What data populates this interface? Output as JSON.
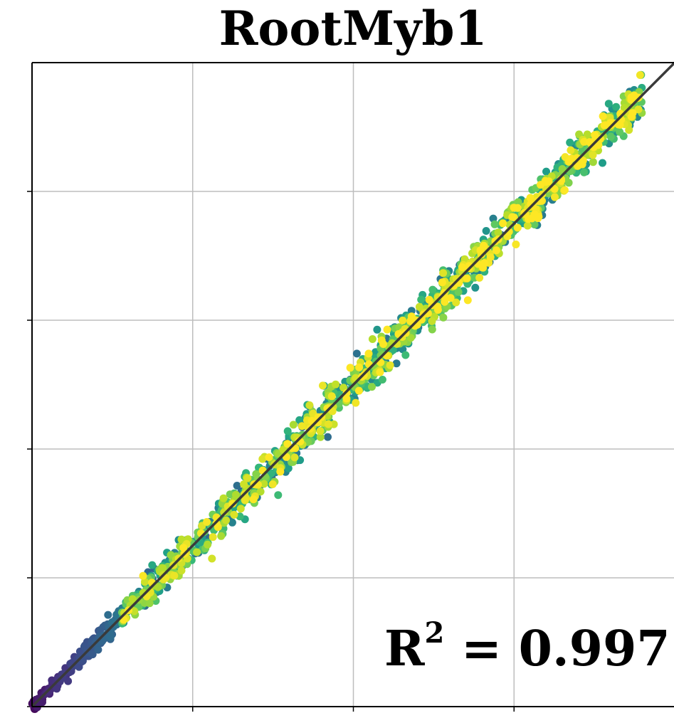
{
  "chart_data": {
    "type": "scatter",
    "title": "RootMyb1",
    "xlabel": "",
    "ylabel": "",
    "xlim": [
      0,
      1
    ],
    "ylim": [
      0,
      1
    ],
    "x_ticks": [
      0,
      0.25,
      0.5,
      0.75
    ],
    "y_ticks": [
      0,
      0.2,
      0.4,
      0.6,
      0.8
    ],
    "tick_labels_shown": false,
    "grid": true,
    "colormap": "viridis",
    "reference_line": {
      "from": [
        0,
        0
      ],
      "to": [
        1,
        1
      ],
      "color": "#3a3a3a"
    },
    "annotation": {
      "label": "R",
      "superscript": "2",
      "text": " = 0.997",
      "r_squared": 0.997
    },
    "series": [
      {
        "points_description": "dense band of points along y = x, color rising from purple (low values) to yellow (high values)",
        "x_range": [
          0,
          0.95
        ],
        "y_range": [
          0,
          0.97
        ]
      }
    ]
  }
}
